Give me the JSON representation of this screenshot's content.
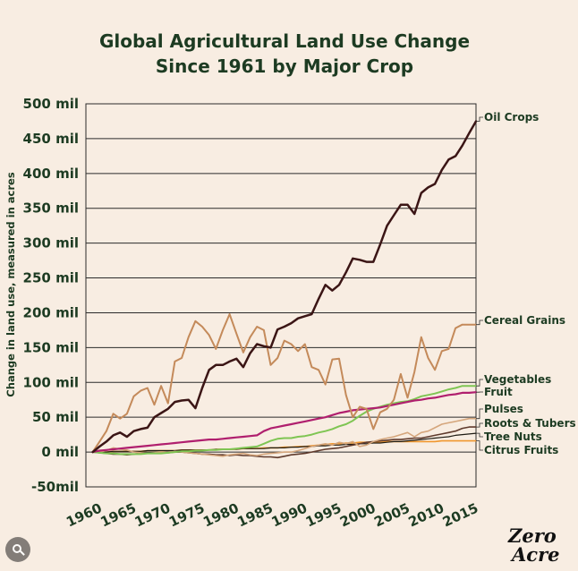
{
  "chart_data": {
    "type": "line",
    "title": "Global Agricultural Land Use Change",
    "subtitle": "Since 1961 by Major Crop",
    "ylabel": "Change in land use, measured in acres",
    "xlabel": "",
    "ylim": [
      -50,
      500
    ],
    "xlim": [
      1960,
      2017
    ],
    "yticks": [
      {
        "value": 500,
        "label": "500 mil"
      },
      {
        "value": 450,
        "label": "450 mil"
      },
      {
        "value": 400,
        "label": "400 mil"
      },
      {
        "value": 350,
        "label": "350 mil"
      },
      {
        "value": 300,
        "label": "300 mil"
      },
      {
        "value": 250,
        "label": "250 mil"
      },
      {
        "value": 200,
        "label": "200 mil"
      },
      {
        "value": 150,
        "label": "150 mil"
      },
      {
        "value": 100,
        "label": "100 mil"
      },
      {
        "value": 50,
        "label": "50 mil"
      },
      {
        "value": 0,
        "label": "0 mil"
      },
      {
        "value": -50,
        "label": "-50mil"
      }
    ],
    "xticks": [
      {
        "value": 1960,
        "label": "1960"
      },
      {
        "value": 1965,
        "label": "1965"
      },
      {
        "value": 1970,
        "label": "1970"
      },
      {
        "value": 1975,
        "label": "1975"
      },
      {
        "value": 1980,
        "label": "1980"
      },
      {
        "value": 1985,
        "label": "1985"
      },
      {
        "value": 1990,
        "label": "1990"
      },
      {
        "value": 1995,
        "label": "1995"
      },
      {
        "value": 2000,
        "label": "2000"
      },
      {
        "value": 2005,
        "label": "2005"
      },
      {
        "value": 2010,
        "label": "2010"
      },
      {
        "value": 2015,
        "label": "2015"
      }
    ],
    "x": [
      1961,
      1962,
      1963,
      1964,
      1965,
      1966,
      1967,
      1968,
      1969,
      1970,
      1971,
      1972,
      1973,
      1974,
      1975,
      1976,
      1977,
      1978,
      1979,
      1980,
      1981,
      1982,
      1983,
      1984,
      1985,
      1986,
      1987,
      1988,
      1989,
      1990,
      1991,
      1992,
      1993,
      1994,
      1995,
      1996,
      1997,
      1998,
      1999,
      2000,
      2001,
      2002,
      2003,
      2004,
      2005,
      2006,
      2007,
      2008,
      2009,
      2010,
      2011,
      2012,
      2013,
      2014,
      2015,
      2016,
      2017
    ],
    "series": [
      {
        "name": "Oil Crops",
        "color": "#3b1515",
        "width": 2.5,
        "values": [
          0,
          8,
          15,
          24,
          28,
          22,
          30,
          33,
          35,
          50,
          56,
          62,
          72,
          74,
          75,
          63,
          92,
          118,
          125,
          125,
          130,
          134,
          122,
          142,
          155,
          152,
          150,
          176,
          180,
          185,
          192,
          195,
          198,
          220,
          240,
          232,
          240,
          258,
          278,
          276,
          273,
          273,
          298,
          325,
          340,
          355,
          355,
          342,
          372,
          380,
          385,
          405,
          420,
          425,
          440,
          458,
          475
        ]
      },
      {
        "name": "Cereal Grains",
        "color": "#c48a5a",
        "width": 2,
        "values": [
          0,
          15,
          30,
          55,
          48,
          55,
          80,
          88,
          92,
          68,
          95,
          70,
          130,
          135,
          165,
          188,
          180,
          168,
          148,
          175,
          198,
          170,
          143,
          165,
          180,
          175,
          125,
          135,
          160,
          155,
          145,
          155,
          122,
          118,
          97,
          133,
          134,
          82,
          50,
          65,
          62,
          33,
          57,
          62,
          75,
          112,
          78,
          115,
          165,
          135,
          118,
          145,
          148,
          178,
          183,
          183,
          183
        ]
      },
      {
        "name": "Vegetables",
        "color": "#7fc553",
        "width": 2,
        "values": [
          0,
          -1,
          -2,
          -2,
          -3,
          -3,
          -3,
          -3,
          -2,
          -2,
          -2,
          -1,
          0,
          1,
          1,
          2,
          2,
          3,
          3,
          4,
          4,
          5,
          6,
          7,
          8,
          12,
          16,
          19,
          20,
          20,
          22,
          23,
          25,
          28,
          30,
          33,
          37,
          40,
          45,
          52,
          58,
          62,
          65,
          68,
          70,
          72,
          73,
          76,
          80,
          82,
          84,
          87,
          90,
          92,
          95,
          95,
          95
        ]
      },
      {
        "name": "Fruit",
        "color": "#b01f6e",
        "width": 2.2,
        "values": [
          0,
          2,
          3,
          4,
          5,
          6,
          7,
          8,
          9,
          10,
          11,
          12,
          13,
          14,
          15,
          16,
          17,
          18,
          18,
          19,
          20,
          21,
          22,
          23,
          24,
          30,
          34,
          36,
          38,
          40,
          42,
          44,
          46,
          48,
          50,
          53,
          56,
          58,
          60,
          61,
          62,
          63,
          64,
          66,
          68,
          70,
          72,
          74,
          75,
          77,
          78,
          80,
          82,
          83,
          85,
          85,
          86
        ]
      },
      {
        "name": "Pulses",
        "color": "#d5a67c",
        "width": 1.6,
        "values": [
          0,
          0,
          2,
          6,
          4,
          3,
          0,
          -1,
          -2,
          -1,
          0,
          -1,
          1,
          0,
          -1,
          -2,
          -3,
          -4,
          -5,
          -6,
          -4,
          -3,
          -2,
          -4,
          -5,
          -3,
          -2,
          -1,
          0,
          0,
          2,
          5,
          8,
          10,
          12,
          10,
          14,
          12,
          15,
          8,
          10,
          15,
          18,
          20,
          22,
          25,
          28,
          22,
          28,
          30,
          35,
          40,
          42,
          44,
          46,
          48,
          48
        ]
      },
      {
        "name": "Roots & Tubers",
        "color": "#5f3a2c",
        "width": 1.6,
        "values": [
          0,
          -1,
          -2,
          -3,
          -3,
          -4,
          -3,
          -2,
          -2,
          -2,
          -1,
          -1,
          0,
          0,
          -1,
          -2,
          -3,
          -3,
          -4,
          -4,
          -5,
          -4,
          -5,
          -5,
          -6,
          -7,
          -7,
          -8,
          -6,
          -4,
          -3,
          -2,
          0,
          2,
          4,
          5,
          6,
          8,
          10,
          12,
          14,
          15,
          16,
          17,
          18,
          18,
          19,
          20,
          20,
          22,
          24,
          26,
          28,
          30,
          34,
          36,
          36
        ]
      },
      {
        "name": "Tree Nuts",
        "color": "#1d1a12",
        "width": 1.2,
        "values": [
          0,
          0,
          0,
          1,
          1,
          1,
          1,
          1,
          2,
          2,
          2,
          2,
          2,
          3,
          3,
          3,
          3,
          3,
          4,
          4,
          4,
          4,
          5,
          5,
          5,
          5,
          6,
          6,
          6,
          7,
          7,
          8,
          8,
          9,
          9,
          10,
          10,
          11,
          11,
          12,
          12,
          13,
          13,
          14,
          15,
          15,
          16,
          17,
          18,
          19,
          20,
          21,
          22,
          24,
          25,
          26,
          27
        ]
      },
      {
        "name": "Citrus Fruits",
        "color": "#f0972e",
        "width": 1.6,
        "values": [
          0,
          0,
          0,
          1,
          1,
          1,
          1,
          1,
          2,
          2,
          2,
          2,
          2,
          3,
          3,
          3,
          3,
          3,
          4,
          4,
          4,
          4,
          5,
          5,
          5,
          6,
          6,
          6,
          7,
          7,
          8,
          8,
          9,
          10,
          11,
          12,
          12,
          13,
          13,
          14,
          14,
          14,
          14,
          15,
          15,
          15,
          15,
          15,
          15,
          15,
          15,
          16,
          16,
          16,
          16,
          16,
          16
        ]
      }
    ],
    "labels": [
      {
        "series": "Oil Crops",
        "text": "Oil Crops"
      },
      {
        "series": "Cereal Grains",
        "text": "Cereal Grains"
      },
      {
        "series": "Vegetables",
        "text": "Vegetables"
      },
      {
        "series": "Fruit",
        "text": "Fruit"
      },
      {
        "series": "Pulses",
        "text": "Pulses"
      },
      {
        "series": "Roots & Tubers",
        "text": "Roots & Tubers"
      },
      {
        "series": "Tree Nuts",
        "text": "Tree Nuts"
      },
      {
        "series": "Citrus Fruits",
        "text": "Citrus Fruits"
      }
    ]
  },
  "brand": {
    "line1": "Zero",
    "line2": "Acre"
  },
  "colors": {
    "background": "#f8ede2",
    "text": "#1d3b22",
    "grid": "#2b2b2b"
  }
}
